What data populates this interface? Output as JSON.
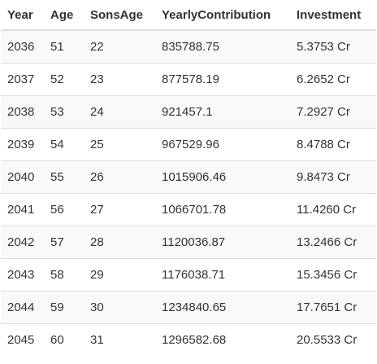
{
  "table": {
    "columns": [
      "Year",
      "Age",
      "SonsAge",
      "YearlyContribution",
      "Investment"
    ],
    "rows": [
      [
        "2036",
        "51",
        "22",
        "835788.75",
        "5.3753 Cr"
      ],
      [
        "2037",
        "52",
        "23",
        "877578.19",
        "6.2652 Cr"
      ],
      [
        "2038",
        "53",
        "24",
        "921457.1",
        "7.2927 Cr"
      ],
      [
        "2039",
        "54",
        "25",
        "967529.96",
        "8.4788 Cr"
      ],
      [
        "2040",
        "55",
        "26",
        "1015906.46",
        "9.8473 Cr"
      ],
      [
        "2041",
        "56",
        "27",
        "1066701.78",
        "11.4260 Cr"
      ],
      [
        "2042",
        "57",
        "28",
        "1120036.87",
        "13.2466 Cr"
      ],
      [
        "2043",
        "58",
        "29",
        "1176038.71",
        "15.3456 Cr"
      ],
      [
        "2044",
        "59",
        "30",
        "1234840.65",
        "17.7651 Cr"
      ],
      [
        "2045",
        "60",
        "31",
        "1296582.68",
        "20.5533 Cr"
      ]
    ]
  }
}
